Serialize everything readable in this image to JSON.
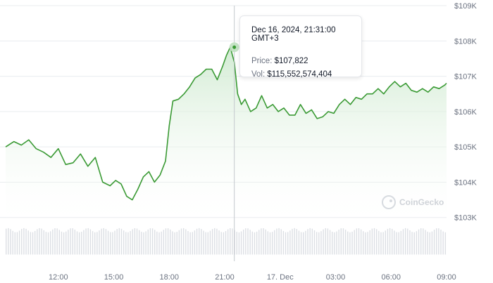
{
  "chart_data": {
    "type": "line",
    "title": "",
    "xlabel": "",
    "ylabel": "",
    "x_ticks": [
      "12:00",
      "15:00",
      "18:00",
      "21:00",
      "17. Dec",
      "03:00",
      "06:00",
      "09:00"
    ],
    "y_ticks": [
      "$103K",
      "$104K",
      "$105K",
      "$106K",
      "$107K",
      "$108K",
      "$109K"
    ],
    "ylim": [
      102100,
      109000
    ],
    "y_tick_values": [
      103000,
      104000,
      105000,
      106000,
      107000,
      108000,
      109000
    ],
    "x_start_hour": 9.15,
    "x_end_hour": 33.0,
    "tick_hours": [
      12,
      15,
      18,
      21,
      24,
      27,
      30,
      33
    ],
    "series": [
      {
        "line_color": "#3a9a34",
        "x_hours": [
          9.15,
          9.6,
          10.0,
          10.4,
          10.8,
          11.2,
          11.6,
          12.0,
          12.4,
          12.8,
          13.2,
          13.6,
          14.0,
          14.4,
          14.8,
          15.1,
          15.4,
          15.7,
          16.0,
          16.3,
          16.6,
          16.9,
          17.2,
          17.5,
          17.8,
          18.0,
          18.2,
          18.5,
          18.8,
          19.1,
          19.4,
          19.7,
          20.0,
          20.3,
          20.6,
          20.9,
          21.1,
          21.3,
          21.52,
          21.7,
          21.9,
          22.1,
          22.4,
          22.7,
          23.0,
          23.3,
          23.6,
          23.9,
          24.2,
          24.5,
          24.8,
          25.1,
          25.4,
          25.7,
          26.0,
          26.3,
          26.6,
          26.9,
          27.2,
          27.5,
          27.8,
          28.1,
          28.4,
          28.7,
          29.0,
          29.3,
          29.6,
          29.9,
          30.2,
          30.5,
          30.8,
          31.1,
          31.4,
          31.7,
          32.0,
          32.3,
          32.6,
          32.9,
          33.0
        ],
        "price": [
          105000,
          105150,
          105050,
          105200,
          104950,
          104850,
          104700,
          104950,
          104500,
          104550,
          104800,
          104450,
          104700,
          104000,
          103900,
          104050,
          103950,
          103600,
          103500,
          103800,
          104150,
          104300,
          104000,
          104200,
          104600,
          105600,
          106300,
          106350,
          106500,
          106700,
          106950,
          107050,
          107200,
          107200,
          106900,
          107300,
          107600,
          107822,
          107400,
          106500,
          106200,
          106350,
          106000,
          106100,
          106450,
          106100,
          106200,
          106000,
          106100,
          105900,
          105900,
          106200,
          105950,
          106050,
          105800,
          105850,
          106000,
          105950,
          106200,
          106350,
          106200,
          106400,
          106350,
          106500,
          106500,
          106650,
          106500,
          106700,
          106850,
          106700,
          106800,
          106600,
          106550,
          106650,
          106550,
          106700,
          106650,
          106750,
          106800
        ]
      }
    ],
    "volume_band": [
      102150,
      102700
    ],
    "highlight": {
      "hour": 21.52,
      "price": 107822
    }
  },
  "tooltip": {
    "timestamp": "Dec 16, 2024, 21:31:00 GMT+3",
    "price_label": "Price:",
    "price_value": "$107,822",
    "vol_label": "Vol:",
    "vol_value": "$115,552,574,404"
  },
  "watermark": "CoinGecko",
  "colors": {
    "line": "#3a9a34",
    "fill_top": "#cfead0",
    "grid": "#e9ecef",
    "volume": "#dcdfe4",
    "crosshair": "#c4c8cd",
    "marker": "#bfe0c0"
  }
}
